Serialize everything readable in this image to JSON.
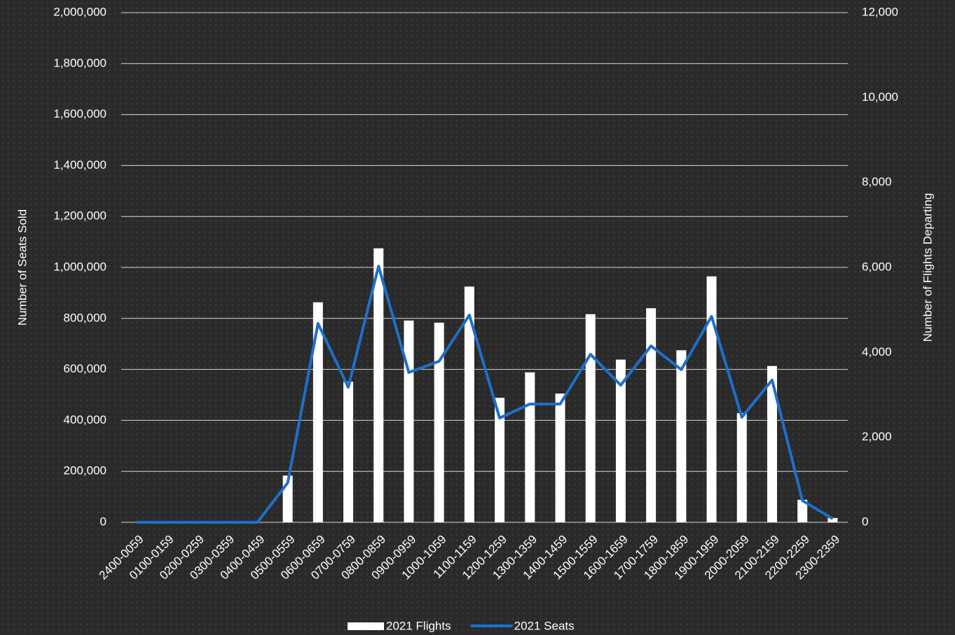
{
  "chart_data": {
    "type": "bar_line",
    "categories": [
      "2400-0059",
      "0100-0159",
      "0200-0259",
      "0300-0359",
      "0400-0459",
      "0500-0559",
      "0600-0659",
      "0700-0759",
      "0800-0859",
      "0900-0959",
      "1000-1059",
      "1100-1159",
      "1200-1259",
      "1300-1359",
      "1400-1459",
      "1500-1559",
      "1600-1659",
      "1700-1759",
      "1800-1859",
      "1900-1959",
      "2000-2059",
      "2100-2159",
      "2200-2259",
      "2300-2359"
    ],
    "series": [
      {
        "name": "2021 Flights",
        "type": "bar",
        "axis": "y2",
        "color": "#ffffff",
        "values": [
          0,
          0,
          0,
          0,
          0,
          1100,
          5180,
          3310,
          6450,
          4750,
          4700,
          5550,
          2930,
          3530,
          3030,
          4900,
          3830,
          5040,
          4050,
          5790,
          2570,
          3680,
          530,
          100
        ]
      },
      {
        "name": "2021 Seats",
        "type": "line",
        "axis": "y",
        "color": "#1f6fc8",
        "values": [
          0,
          0,
          0,
          0,
          0,
          155000,
          780000,
          530000,
          1005000,
          588000,
          632000,
          813000,
          409000,
          464000,
          464000,
          659000,
          538000,
          692000,
          599000,
          808000,
          412000,
          558000,
          85000,
          14000
        ]
      }
    ],
    "ylabel": "Number of Seats Sold",
    "y2label": "Number of Flights Departing",
    "ylim": [
      0,
      2000000
    ],
    "yticks": [
      0,
      {
        "value": 200000,
        "label": "200,000"
      },
      {
        "value": 400000,
        "label": "400,000"
      },
      {
        "value": 600000,
        "label": "600,000"
      },
      {
        "value": 800000,
        "label": "800,000"
      },
      {
        "value": 1000000,
        "label": "1,000,000"
      },
      {
        "value": 1200000,
        "label": "1,200,000"
      },
      {
        "value": 1400000,
        "label": "1,400,000"
      },
      {
        "value": 1600000,
        "label": "1,600,000"
      },
      {
        "value": 1800000,
        "label": "1,800,000"
      },
      {
        "value": 2000000,
        "label": "2,000,000"
      }
    ],
    "y2lim": [
      0,
      12000
    ],
    "y2ticks": [
      0,
      {
        "value": 2000,
        "label": "2,000"
      },
      {
        "value": 4000,
        "label": "4,000"
      },
      {
        "value": 6000,
        "label": "6,000"
      },
      {
        "value": 8000,
        "label": "8,000"
      },
      {
        "value": 10000,
        "label": "10,000"
      },
      {
        "value": 12000,
        "label": "12,000"
      }
    ],
    "grid": true,
    "legend": "bottom"
  }
}
